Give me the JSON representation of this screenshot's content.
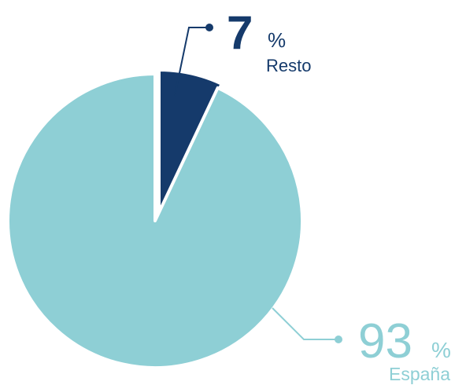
{
  "chart_data": {
    "type": "pie",
    "categories": [
      "Resto",
      "España"
    ],
    "values": [
      7,
      93
    ],
    "colors": [
      "#153a6b",
      "#8ecfd5"
    ],
    "unit": "%"
  }
}
